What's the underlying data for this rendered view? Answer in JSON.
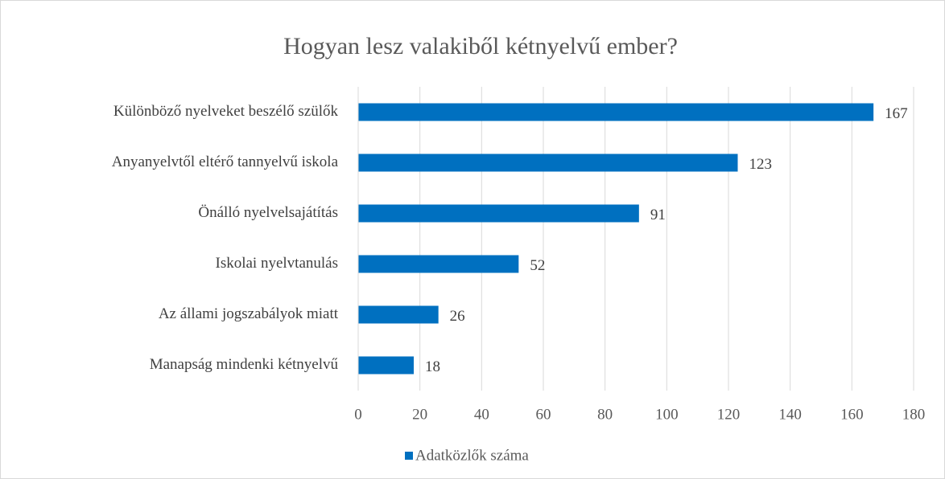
{
  "chart_data": {
    "type": "bar",
    "orientation": "horizontal",
    "title": "Hogyan lesz valakiből kétnyelvű ember?",
    "categories": [
      "Különböző nyelveket beszélő szülők",
      "Anyanyelvtől eltérő tannyelvű iskola",
      "Önálló nyelvelsajátítás",
      "Iskolai nyelvtanulás",
      "Az állami jogszabályok miatt",
      "Manapság mindenki kétnyelvű"
    ],
    "series": [
      {
        "name": "Adatközlők száma",
        "color": "#0070c0",
        "values": [
          167,
          123,
          91,
          52,
          26,
          18
        ]
      }
    ],
    "xlim": [
      0,
      180
    ],
    "xticks": [
      0,
      20,
      40,
      60,
      80,
      100,
      120,
      140,
      160,
      180
    ],
    "grid": true,
    "legend": "bottom"
  }
}
